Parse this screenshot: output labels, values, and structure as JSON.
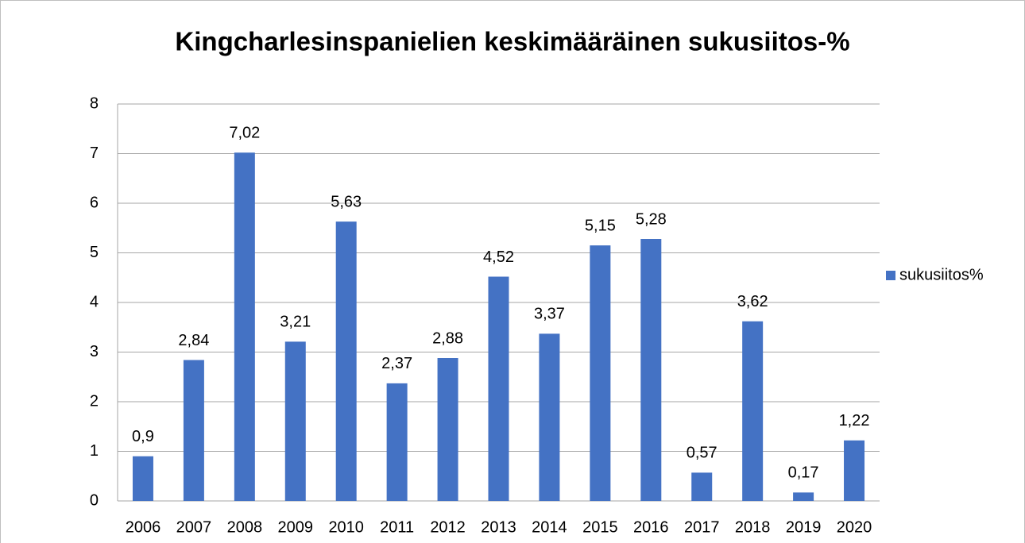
{
  "chart_data": {
    "type": "bar",
    "title": "Kingcharlesinspanielien keskimääräinen sukusiitos-%",
    "categories": [
      "2006",
      "2007",
      "2008",
      "2009",
      "2010",
      "2011",
      "2012",
      "2013",
      "2014",
      "2015",
      "2016",
      "2017",
      "2018",
      "2019",
      "2020"
    ],
    "series": [
      {
        "name": "sukusiitos%",
        "color": "#4472c4",
        "values": [
          0.9,
          2.84,
          7.02,
          3.21,
          5.63,
          2.37,
          2.88,
          4.52,
          3.37,
          5.15,
          5.28,
          0.57,
          3.62,
          0.17,
          1.22
        ],
        "value_labels": [
          "0,9",
          "2,84",
          "7,02",
          "3,21",
          "5,63",
          "2,37",
          "2,88",
          "4,52",
          "3,37",
          "5,15",
          "5,28",
          "0,57",
          "3,62",
          "0,17",
          "1,22"
        ]
      }
    ],
    "ylim": [
      0,
      8
    ],
    "yticks": [
      0,
      1,
      2,
      3,
      4,
      5,
      6,
      7,
      8
    ],
    "grid": true,
    "legend": "right"
  }
}
